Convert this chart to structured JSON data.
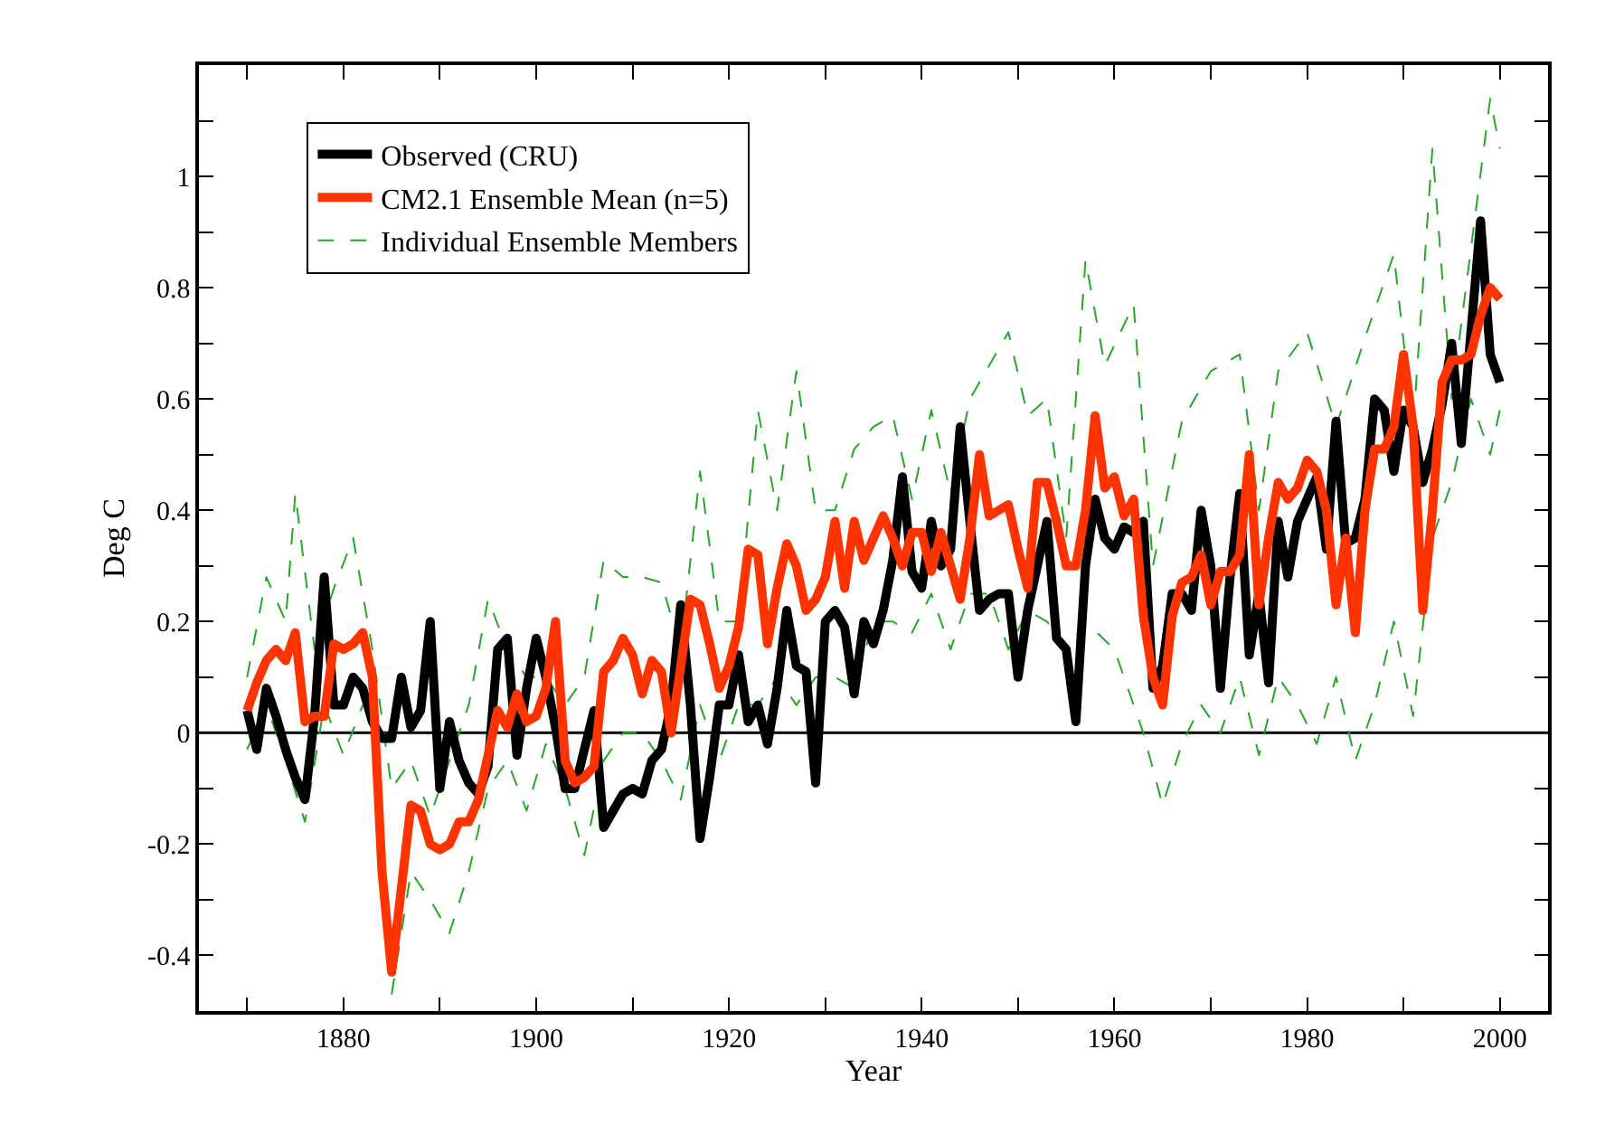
{
  "chart_data": {
    "type": "line",
    "xlabel": "Year",
    "ylabel": "Deg C",
    "xlim": [
      1865,
      2005
    ],
    "xticks": [
      {
        "value": 1870,
        "label": null
      },
      1880,
      {
        "value": 1890,
        "label": null
      },
      1900,
      {
        "value": 1910,
        "label": null
      },
      1920,
      {
        "value": 1930,
        "label": null
      },
      1940,
      {
        "value": 1950,
        "label": null
      },
      1960,
      {
        "value": 1970,
        "label": null
      },
      1980,
      {
        "value": 1990,
        "label": null
      },
      2000
    ],
    "ylim": [
      -0.5,
      1.2
    ],
    "yticks": [
      {
        "value": -0.4,
        "label": "-0.4"
      },
      {
        "value": -0.3,
        "label": null
      },
      {
        "value": -0.2,
        "label": "-0.2"
      },
      {
        "value": -0.1,
        "label": null
      },
      0,
      {
        "value": 0.1,
        "label": null
      },
      0.2,
      {
        "value": 0.3,
        "label": null
      },
      0.4,
      {
        "value": 0.5,
        "label": null
      },
      0.6,
      {
        "value": 0.7,
        "label": null
      },
      0.8,
      {
        "value": 0.9,
        "label": null
      },
      1,
      {
        "value": 1.1,
        "label": null
      }
    ],
    "grid": false,
    "legend": "top left",
    "marker": "none",
    "ref_lines": [
      {
        "axis": "y",
        "value": 0,
        "color": "#000000"
      }
    ],
    "series": [
      {
        "name": "Individual Ensemble Members",
        "color": "#22aa22",
        "line_style": "dashed",
        "x": [
          1870,
          1872,
          1874,
          1875,
          1877,
          1879,
          1881,
          1883,
          1885,
          1887,
          1889,
          1891,
          1893,
          1895,
          1897,
          1899,
          1901,
          1903,
          1905,
          1907,
          1909,
          1911,
          1913,
          1915,
          1917,
          1919,
          1921,
          1923,
          1925,
          1927,
          1929,
          1931,
          1933,
          1935,
          1937,
          1939,
          1941,
          1943,
          1945,
          1947,
          1949,
          1951,
          1953,
          1955,
          1957,
          1959,
          1962,
          1964,
          1967,
          1970,
          1973,
          1975,
          1977,
          1980,
          1983,
          1986,
          1989,
          1991,
          1993,
          1995,
          1999,
          2000
        ],
        "values": [
          0.1,
          0.28,
          0.2,
          0.43,
          0.15,
          0.26,
          0.35,
          0.15,
          -0.1,
          -0.05,
          -0.15,
          -0.05,
          0.05,
          0.24,
          0.15,
          0.1,
          0.1,
          0.05,
          0.1,
          0.31,
          0.28,
          0.28,
          0.27,
          0.15,
          0.47,
          0.2,
          0.2,
          0.58,
          0.4,
          0.65,
          0.4,
          0.4,
          0.51,
          0.55,
          0.57,
          0.42,
          0.58,
          0.43,
          0.6,
          0.66,
          0.72,
          0.57,
          0.6,
          0.35,
          0.85,
          0.66,
          0.77,
          0.3,
          0.56,
          0.65,
          0.68,
          0.4,
          0.65,
          0.72,
          0.55,
          0.71,
          0.86,
          0.55,
          1.05,
          0.6,
          1.14,
          1.05
        ]
      },
      {
        "color": "#22aa22",
        "line_style": "dashed",
        "x": [
          1870,
          1872,
          1874,
          1876,
          1878,
          1880,
          1882,
          1884,
          1885,
          1887,
          1889,
          1891,
          1893,
          1895,
          1897,
          1899,
          1901,
          1903,
          1905,
          1907,
          1909,
          1911,
          1913,
          1915,
          1917,
          1919,
          1921,
          1923,
          1925,
          1927,
          1929,
          1931,
          1933,
          1935,
          1937,
          1939,
          1941,
          1943,
          1945,
          1947,
          1949,
          1951,
          1953,
          1955,
          1957,
          1960,
          1963,
          1965,
          1967,
          1969,
          1971,
          1973,
          1975,
          1977,
          1979,
          1981,
          1983,
          1985,
          1987,
          1989,
          1991,
          1993,
          1995,
          1997,
          1999,
          2000
        ],
        "values": [
          -0.03,
          0.05,
          -0.05,
          -0.16,
          0.05,
          -0.04,
          0.05,
          null,
          -0.47,
          -0.25,
          -0.3,
          -0.36,
          -0.25,
          -0.1,
          -0.05,
          -0.14,
          -0.02,
          -0.1,
          -0.22,
          -0.05,
          0.0,
          0.0,
          -0.05,
          -0.12,
          0.05,
          -0.05,
          0.05,
          0.05,
          0.1,
          0.05,
          0.1,
          0.1,
          0.08,
          0.2,
          0.2,
          0.18,
          0.25,
          0.15,
          0.25,
          0.25,
          0.15,
          0.22,
          0.2,
          0.15,
          0.2,
          0.15,
          0.0,
          -0.13,
          -0.02,
          0.05,
          0.0,
          0.1,
          -0.04,
          0.1,
          0.05,
          -0.02,
          0.1,
          -0.05,
          0.05,
          0.2,
          0.03,
          0.35,
          0.45,
          0.6,
          0.5,
          0.58
        ]
      },
      {
        "name": "Observed (CRU)",
        "color": "#000000",
        "line_style": "solid",
        "x": [
          1870,
          1871,
          1872,
          1873,
          1874,
          1875,
          1876,
          1877,
          1878,
          1879,
          1880,
          1881,
          1882,
          1883,
          1884,
          1885,
          1886,
          1887,
          1888,
          1889,
          1890,
          1891,
          1892,
          1893,
          1894,
          1895,
          1896,
          1897,
          1898,
          1899,
          1900,
          1901,
          1902,
          1903,
          1904,
          1905,
          1906,
          1907,
          1908,
          1909,
          1910,
          1911,
          1912,
          1913,
          1914,
          1915,
          1916,
          1917,
          1918,
          1919,
          1920,
          1921,
          1922,
          1923,
          1924,
          1925,
          1926,
          1927,
          1928,
          1929,
          1930,
          1931,
          1932,
          1933,
          1934,
          1935,
          1936,
          1937,
          1938,
          1939,
          1940,
          1941,
          1942,
          1943,
          1944,
          1945,
          1946,
          1947,
          1948,
          1949,
          1950,
          1951,
          1952,
          1953,
          1954,
          1955,
          1956,
          1957,
          1958,
          1959,
          1960,
          1961,
          1962,
          1963,
          1964,
          1965,
          1966,
          1967,
          1968,
          1969,
          1970,
          1971,
          1972,
          1973,
          1974,
          1975,
          1976,
          1977,
          1978,
          1979,
          1980,
          1981,
          1982,
          1983,
          1984,
          1985,
          1986,
          1987,
          1988,
          1989,
          1990,
          1991,
          1992,
          1993,
          1994,
          1995,
          1996,
          1997,
          1998,
          1999,
          2000
        ],
        "values": [
          0.04,
          -0.03,
          0.08,
          0.03,
          -0.03,
          -0.08,
          -0.12,
          0.03,
          0.28,
          0.05,
          0.05,
          0.1,
          0.08,
          0.02,
          -0.01,
          -0.01,
          0.1,
          0.01,
          0.04,
          0.2,
          -0.1,
          0.02,
          -0.05,
          -0.09,
          -0.11,
          -0.06,
          0.15,
          0.17,
          -0.04,
          0.08,
          0.17,
          0.1,
          0.01,
          -0.1,
          -0.1,
          -0.03,
          0.04,
          -0.17,
          -0.14,
          -0.11,
          -0.1,
          -0.11,
          -0.05,
          -0.03,
          0.05,
          0.23,
          0.05,
          -0.19,
          -0.08,
          0.05,
          0.05,
          0.14,
          0.02,
          0.05,
          -0.02,
          0.08,
          0.22,
          0.12,
          0.11,
          -0.09,
          0.2,
          0.22,
          0.19,
          0.07,
          0.2,
          0.16,
          0.22,
          0.31,
          0.46,
          0.29,
          0.26,
          0.38,
          0.3,
          0.33,
          0.55,
          0.38,
          0.22,
          0.24,
          0.25,
          0.25,
          0.1,
          0.22,
          0.3,
          0.38,
          0.17,
          0.15,
          0.02,
          0.3,
          0.42,
          0.35,
          0.33,
          0.37,
          0.36,
          0.38,
          0.08,
          0.12,
          0.25,
          0.25,
          0.22,
          0.4,
          0.3,
          0.08,
          0.28,
          0.43,
          0.14,
          0.25,
          0.09,
          0.38,
          0.28,
          0.38,
          0.42,
          0.46,
          0.33,
          0.56,
          0.34,
          0.35,
          0.42,
          0.6,
          0.58,
          0.47,
          0.58,
          0.55,
          0.45,
          0.51,
          0.59,
          0.7,
          0.52,
          0.72,
          0.92,
          0.68,
          0.63
        ]
      },
      {
        "name": "CM2.1 Ensemble Mean (n=5)",
        "color": "#ff3300",
        "line_style": "solid",
        "x": [
          1870,
          1871,
          1872,
          1873,
          1874,
          1875,
          1876,
          1877,
          1878,
          1879,
          1880,
          1881,
          1882,
          1883,
          1884,
          1885,
          1886,
          1887,
          1888,
          1889,
          1890,
          1891,
          1892,
          1893,
          1894,
          1895,
          1896,
          1897,
          1898,
          1899,
          1900,
          1901,
          1902,
          1903,
          1904,
          1905,
          1906,
          1907,
          1908,
          1909,
          1910,
          1911,
          1912,
          1913,
          1914,
          1915,
          1916,
          1917,
          1918,
          1919,
          1920,
          1921,
          1922,
          1923,
          1924,
          1925,
          1926,
          1927,
          1928,
          1929,
          1930,
          1931,
          1932,
          1933,
          1934,
          1935,
          1936,
          1937,
          1938,
          1939,
          1940,
          1941,
          1942,
          1943,
          1944,
          1945,
          1946,
          1947,
          1948,
          1949,
          1950,
          1951,
          1952,
          1953,
          1954,
          1955,
          1956,
          1957,
          1958,
          1959,
          1960,
          1961,
          1962,
          1963,
          1964,
          1965,
          1966,
          1967,
          1968,
          1969,
          1970,
          1971,
          1972,
          1973,
          1974,
          1975,
          1976,
          1977,
          1978,
          1979,
          1980,
          1981,
          1982,
          1983,
          1984,
          1985,
          1986,
          1987,
          1988,
          1989,
          1990,
          1991,
          1992,
          1993,
          1994,
          1995,
          1996,
          1997,
          1998,
          1999,
          2000
        ],
        "values": [
          0.04,
          0.09,
          0.13,
          0.15,
          0.13,
          0.18,
          0.02,
          0.03,
          0.03,
          0.16,
          0.15,
          0.16,
          0.18,
          0.1,
          -0.25,
          -0.43,
          -0.28,
          -0.13,
          -0.14,
          -0.2,
          -0.21,
          -0.2,
          -0.16,
          -0.16,
          -0.12,
          -0.04,
          0.04,
          0.01,
          0.07,
          0.02,
          0.03,
          0.08,
          0.2,
          -0.05,
          -0.09,
          -0.08,
          -0.06,
          0.11,
          0.13,
          0.17,
          0.14,
          0.07,
          0.13,
          0.11,
          0.0,
          0.12,
          0.24,
          0.23,
          0.16,
          0.08,
          0.12,
          0.19,
          0.33,
          0.32,
          0.16,
          0.26,
          0.34,
          0.3,
          0.22,
          0.24,
          0.28,
          0.38,
          0.26,
          0.38,
          0.31,
          0.35,
          0.39,
          0.35,
          0.3,
          0.36,
          0.36,
          0.29,
          0.36,
          0.3,
          0.24,
          0.35,
          0.5,
          0.39,
          0.4,
          0.41,
          0.33,
          0.26,
          0.45,
          0.45,
          0.38,
          0.3,
          0.3,
          0.4,
          0.57,
          0.44,
          0.46,
          0.39,
          0.42,
          0.21,
          0.1,
          0.05,
          0.21,
          0.27,
          0.28,
          0.32,
          0.23,
          0.29,
          0.29,
          0.32,
          0.5,
          0.23,
          0.35,
          0.45,
          0.42,
          0.44,
          0.49,
          0.47,
          0.4,
          0.23,
          0.35,
          0.18,
          0.4,
          0.51,
          0.51,
          0.55,
          0.68,
          0.55,
          0.22,
          0.4,
          0.63,
          0.67,
          0.67,
          0.68,
          0.75,
          0.8,
          0.78
        ]
      }
    ]
  }
}
